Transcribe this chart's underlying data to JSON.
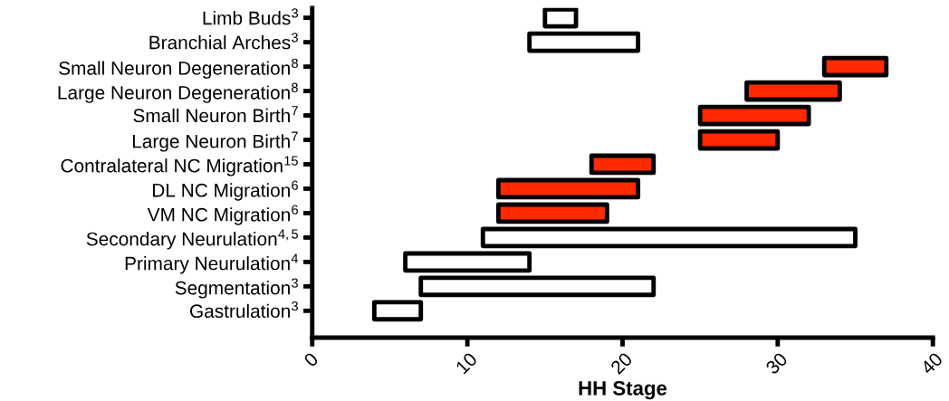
{
  "chart_data": {
    "type": "bar",
    "orientation": "horizontal",
    "xlabel": "HH Stage",
    "categories": [
      "Limb Buds$^{3}$",
      "Branchial Arches$^{3}$",
      "Small Neuron Degeneration$^{8}$",
      "Large Neuron Degeneration$^{8}$",
      "Small Neuron Birth$^{7}$",
      "Large Neuron Birth$^{7}$",
      "Contralateral NC Migration$^{15}$",
      "DL NC Migration$^{6}$",
      "VM NC Migration$^{6}$",
      "Secondary Neurulation$^{4,5}$",
      "Primary Neurulation$^{4}$",
      "Segmentation$^{3}$",
      "Gastrulation$^{3}$"
    ],
    "base": [
      15,
      14,
      33,
      28,
      25,
      25,
      18,
      12,
      12,
      11,
      6,
      7,
      4
    ],
    "values": [
      2,
      7,
      4,
      6,
      7,
      5,
      4,
      9,
      7,
      24,
      8,
      15,
      3
    ],
    "colors": [
      "#ffffff",
      "#ffffff",
      "#ff2a00",
      "#ff2a00",
      "#ff2a00",
      "#ff2a00",
      "#ff2a00",
      "#ff2a00",
      "#ff2a00",
      "#ffffff",
      "#ffffff",
      "#ffffff",
      "#ffffff"
    ],
    "xlim": [
      0,
      40
    ],
    "xticks": [
      0,
      10,
      20,
      30,
      40
    ],
    "grid": false
  }
}
